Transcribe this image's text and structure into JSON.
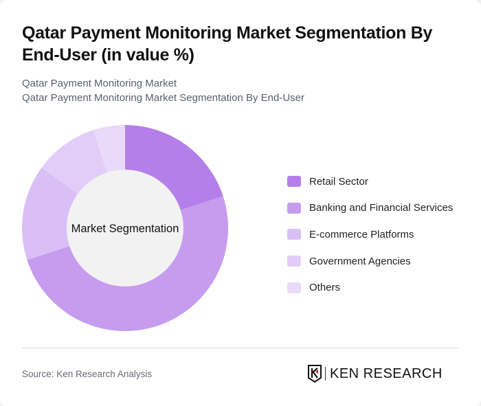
{
  "header": {
    "title": "Qatar Payment Monitoring Market Segmentation By End-User (in value %)",
    "subtitle_line1": "Qatar Payment Monitoring Market",
    "subtitle_line2": "Qatar Payment Monitoring Market Segmentation By End-User"
  },
  "chart": {
    "center_label": "Market Segmentation"
  },
  "legend": {
    "items": [
      {
        "label": "Retail Sector",
        "color": "#b47fe9"
      },
      {
        "label": "Banking and Financial Services",
        "color": "#c69cee"
      },
      {
        "label": "E-commerce Platforms",
        "color": "#dabff6"
      },
      {
        "label": "Government Agencies",
        "color": "#e2cdf8"
      },
      {
        "label": "Others",
        "color": "#e9daf9"
      }
    ]
  },
  "footer": {
    "source": "Source: Ken Research Analysis",
    "logo_text": "KEN RESEARCH"
  },
  "chart_data": {
    "type": "pie",
    "variant": "donut",
    "title": "Qatar Payment Monitoring Market Segmentation By End-User (in value %)",
    "center_label": "Market Segmentation",
    "categories": [
      "Retail Sector",
      "Banking and Financial Services",
      "E-commerce Platforms",
      "Government Agencies",
      "Others"
    ],
    "values": [
      20,
      50,
      15,
      10,
      5
    ],
    "colors": [
      "#b47fe9",
      "#c69cee",
      "#dabff6",
      "#e2cdf8",
      "#e9daf9"
    ],
    "legend_position": "right"
  }
}
